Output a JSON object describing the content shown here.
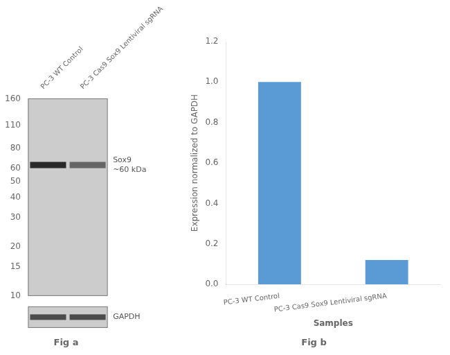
{
  "chart_data": [
    {
      "type": "blot",
      "title": "Fig a",
      "categories": [
        "PC-3 WT Control",
        "PC-3 Cas9 Sox9 Lentiviral sgRNA"
      ],
      "values": [
        63,
        63
      ],
      "colors": [
        "#2a2a2a",
        "#666666"
      ],
      "ylim": [
        10,
        160
      ],
      "yticks": [
        160,
        110,
        80,
        60,
        50,
        40,
        30,
        20,
        15,
        10
      ],
      "log": "y",
      "grid": false,
      "annotations": [
        "Sox9\n~60 kDa",
        "GAPDH"
      ]
    },
    {
      "type": "bar",
      "title": "Fig b",
      "categories": [
        "PC-3 WT Control",
        "PC-3 Cas9 Sox9 Lentiviral sgRNA"
      ],
      "values": [
        1.0,
        0.12
      ],
      "color": "#5b9bd5",
      "xlabel": "Samples",
      "ylabel": "Expression normalized to GAPDH",
      "ylim": [
        0,
        1.2
      ],
      "yticks": [
        {
          "value": 0,
          "label": "0.0"
        },
        0.2,
        0.4,
        0.6,
        0.8,
        {
          "value": 1.0,
          "label": "1.0"
        },
        1.2
      ],
      "grid": false
    }
  ]
}
